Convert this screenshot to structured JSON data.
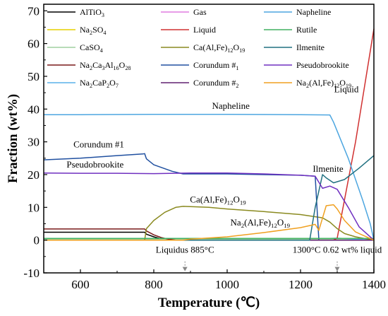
{
  "chart_data": {
    "type": "line",
    "title": "",
    "xlabel": "Temperature (℃)",
    "ylabel": "Fraction (wt%)",
    "xlim": [
      500,
      1400
    ],
    "ylim": [
      -10,
      72
    ],
    "xticks": [
      600,
      800,
      1000,
      1200,
      1400
    ],
    "yticks": [
      -10,
      0,
      10,
      20,
      30,
      40,
      50,
      60,
      70
    ],
    "grid": false,
    "legend_position": "top",
    "series": [
      {
        "name": "AlTiO3",
        "color": "#000000",
        "x": [
          500,
          775,
          780,
          800,
          820,
          840,
          1400
        ],
        "y": [
          2.4,
          2.4,
          1.8,
          1.0,
          0.4,
          0,
          0
        ]
      },
      {
        "name": "Na2SO4",
        "color": "#e6d000",
        "x": [
          500,
          1400
        ],
        "y": [
          0.3,
          0.3
        ]
      },
      {
        "name": "CaSO4",
        "color": "#9fd09f",
        "x": [
          500,
          1400
        ],
        "y": [
          0.2,
          0.2
        ]
      },
      {
        "name": "Na2Ca3Al16O28",
        "color": "#7a1a1a",
        "x": [
          500,
          775,
          780,
          800,
          820,
          840,
          860,
          1400
        ],
        "y": [
          3.4,
          3.4,
          2.8,
          1.6,
          0.8,
          0.3,
          0,
          0
        ]
      },
      {
        "name": "Na2CaP2O7",
        "color": "#5ab0ea",
        "x": [
          500,
          1280,
          1300,
          1400
        ],
        "y": [
          0.5,
          0.5,
          0.6,
          0
        ]
      },
      {
        "name": "Gas",
        "color": "#e07de0",
        "x": [
          500,
          1400
        ],
        "y": [
          0,
          0
        ]
      },
      {
        "name": "Liquid",
        "color": "#d03030",
        "x": [
          500,
          1290,
          1300,
          1350,
          1400
        ],
        "y": [
          0,
          0,
          0.62,
          30,
          64.5
        ]
      },
      {
        "name": "Ca(Al,Fe)12O19",
        "color": "#8a8a20",
        "x": [
          500,
          775,
          780,
          800,
          830,
          860,
          880,
          950,
          1000,
          1100,
          1200,
          1260,
          1280,
          1300,
          1320,
          1350,
          1400
        ],
        "y": [
          0,
          0,
          3.5,
          6,
          8.5,
          10,
          10.3,
          10,
          9.5,
          8.7,
          7.8,
          6.8,
          5.5,
          3.5,
          2,
          1,
          0
        ]
      },
      {
        "name": "Corundum #1",
        "color": "#2050a0",
        "x": [
          500,
          600,
          700,
          770,
          775,
          780,
          800,
          850,
          880,
          950,
          1000,
          1100,
          1200,
          1240,
          1250,
          1400
        ],
        "y": [
          24.5,
          25,
          25.8,
          26.3,
          26.4,
          24.8,
          23,
          21,
          20.2,
          20.2,
          20.2,
          20,
          19.8,
          19.5,
          0,
          0
        ]
      },
      {
        "name": "Corundum #2",
        "color": "#602070",
        "x": [
          500,
          1400
        ],
        "y": [
          0,
          0
        ]
      },
      {
        "name": "Napheline",
        "color": "#4da6e0",
        "x": [
          500,
          600,
          800,
          1000,
          1200,
          1280,
          1290,
          1330,
          1370,
          1390,
          1400
        ],
        "y": [
          38.3,
          38.3,
          38.4,
          38.4,
          38.3,
          38.2,
          36,
          25,
          12,
          5,
          0
        ]
      },
      {
        "name": "Rutile",
        "color": "#40b060",
        "x": [
          500,
          1400
        ],
        "y": [
          0.5,
          0.5
        ]
      },
      {
        "name": "Ilmenite",
        "color": "#207080",
        "x": [
          500,
          1225,
          1240,
          1260,
          1270,
          1290,
          1320,
          1360,
          1400
        ],
        "y": [
          0,
          0,
          10,
          20,
          19,
          17.5,
          18.5,
          22,
          25.8
        ]
      },
      {
        "name": "Pseudobrookite",
        "color": "#7030c0",
        "x": [
          500,
          600,
          700,
          800,
          900,
          1000,
          1100,
          1200,
          1240,
          1260,
          1280,
          1300,
          1330,
          1360,
          1400
        ],
        "y": [
          20.5,
          20.4,
          20.4,
          20.3,
          20.5,
          20.5,
          20.2,
          19.8,
          19.5,
          15.8,
          16.5,
          15.5,
          10,
          4,
          0
        ]
      },
      {
        "name": "Na2(Al,Fe)12O19",
        "color": "#f0a020",
        "x": [
          500,
          880,
          900,
          1000,
          1100,
          1200,
          1240,
          1250,
          1270,
          1290,
          1300,
          1320,
          1350,
          1400
        ],
        "y": [
          0,
          0,
          0.3,
          1,
          2.3,
          3.8,
          4.8,
          3,
          10.5,
          10.8,
          9.5,
          6,
          2.5,
          0
        ]
      }
    ],
    "annotations": [
      {
        "text": "Napheline",
        "x": 1010,
        "y": 40.1
      },
      {
        "text": "Corundum #1",
        "x": 650,
        "y": 28.3
      },
      {
        "text": "Pseudobrookite",
        "x": 640,
        "y": 22.1
      },
      {
        "text": "Ilmenite",
        "x": 1275,
        "y": 20.9
      },
      {
        "text": "Liquid",
        "x": 1325,
        "y": 45.1
      },
      {
        "text": "Ca(Al,Fe)12O19",
        "x": 975,
        "y": 11.5
      },
      {
        "text": "Na2(Al,Fe)12O19",
        "x": 1090,
        "y": 4.5
      },
      {
        "text": "Liquidus 885°C",
        "x": 885,
        "y": -3.9
      },
      {
        "text": "1300°C 0.62 wt% liquid",
        "x": 1300,
        "y": -3.9
      }
    ],
    "arrows": [
      {
        "x": 885,
        "y_from": -6.5,
        "y_to": -9.5
      },
      {
        "x": 1300,
        "y_from": -6.5,
        "y_to": -9.5
      }
    ]
  }
}
